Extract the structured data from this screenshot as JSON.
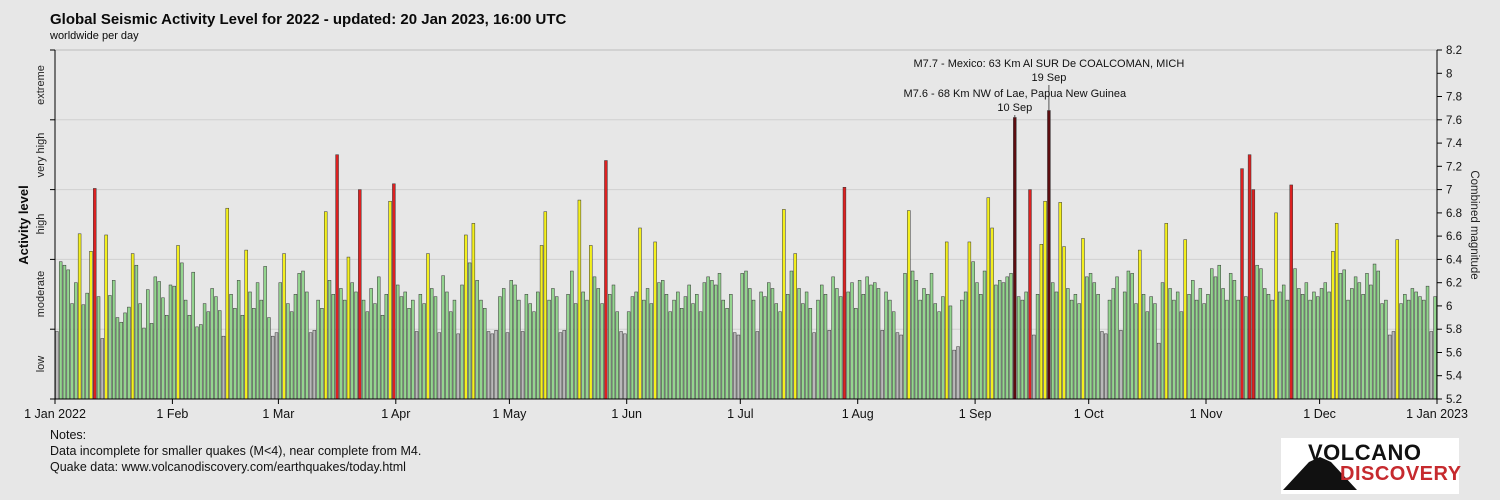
{
  "header": {
    "title": "Global Seismic Activity Level for 2022 - updated: 20 Jan 2023, 16:00 UTC",
    "subtitle": "worldwide per day"
  },
  "chart_data": {
    "type": "bar",
    "title": "Global Seismic Activity Level for 2022 - updated: 20 Jan 2023, 16:00 UTC",
    "subtitle": "worldwide per day",
    "x_axis": {
      "tick_labels": [
        "1 Jan 2022",
        "1 Feb",
        "1 Mar",
        "1 Apr",
        "1 May",
        "1 Jun",
        "1 Jul",
        "1 Aug",
        "1 Sep",
        "1 Oct",
        "1 Nov",
        "1 Dec",
        "1 Jan 2023"
      ],
      "tick_day_offsets": [
        0,
        31,
        59,
        90,
        120,
        151,
        181,
        212,
        243,
        273,
        304,
        334,
        365
      ]
    },
    "y_axis_right": {
      "label": "Combined magnitude",
      "min": 5.2,
      "max": 8.2,
      "tick_step": 0.2
    },
    "y_axis_left": {
      "label": "Activity level",
      "bands": [
        {
          "name": "low",
          "from": 5.2,
          "to": 5.8,
          "color": "#b9b9b9"
        },
        {
          "name": "moderate",
          "from": 5.8,
          "to": 6.4,
          "color": "#94d58f"
        },
        {
          "name": "high",
          "from": 6.4,
          "to": 7.0,
          "color": "#f4f01e"
        },
        {
          "name": "very high",
          "from": 7.0,
          "to": 7.6,
          "color": "#dd2121"
        },
        {
          "name": "extreme",
          "from": 7.6,
          "to": 8.2,
          "color": "#5c0d10"
        }
      ]
    },
    "grid": {
      "boundary_lines": [
        5.8,
        6.4,
        7.0,
        7.6,
        8.2
      ]
    },
    "series": [
      {
        "name": "Combined magnitude per day",
        "start": "1 Jan 2022",
        "values": [
          5.78,
          6.38,
          6.35,
          6.31,
          6.02,
          6.2,
          6.62,
          6.01,
          6.11,
          6.47,
          7.01,
          6.08,
          5.72,
          6.61,
          6.09,
          6.22,
          5.9,
          5.86,
          5.94,
          5.99,
          6.45,
          6.35,
          6.02,
          5.81,
          6.14,
          5.85,
          6.25,
          6.21,
          6.07,
          5.92,
          6.18,
          6.17,
          6.52,
          6.37,
          6.05,
          5.92,
          6.29,
          5.82,
          5.84,
          6.02,
          5.95,
          6.15,
          6.08,
          5.96,
          5.74,
          6.84,
          6.1,
          5.98,
          6.22,
          5.92,
          6.48,
          6.12,
          5.98,
          6.2,
          6.05,
          6.34,
          5.9,
          5.74,
          5.77,
          6.2,
          6.45,
          6.02,
          5.95,
          6.1,
          6.28,
          6.3,
          6.12,
          5.77,
          5.79,
          6.05,
          5.98,
          6.81,
          6.22,
          6.1,
          7.3,
          6.15,
          6.05,
          6.42,
          6.2,
          6.12,
          7.0,
          6.05,
          5.95,
          6.15,
          6.02,
          6.25,
          5.92,
          6.1,
          6.9,
          7.05,
          6.18,
          6.08,
          6.12,
          5.98,
          6.05,
          5.78,
          6.1,
          6.02,
          6.45,
          6.15,
          6.08,
          5.77,
          6.26,
          6.12,
          5.95,
          6.05,
          5.76,
          6.18,
          6.61,
          6.37,
          6.71,
          6.22,
          6.05,
          5.98,
          5.78,
          5.76,
          5.79,
          6.08,
          6.15,
          5.77,
          6.22,
          6.18,
          6.05,
          5.78,
          6.1,
          6.02,
          5.95,
          6.12,
          6.52,
          6.81,
          6.05,
          6.15,
          6.08,
          5.77,
          5.79,
          6.1,
          6.3,
          6.02,
          6.91,
          6.12,
          6.05,
          6.52,
          6.25,
          6.15,
          6.02,
          7.25,
          6.1,
          6.18,
          5.95,
          5.78,
          5.76,
          5.95,
          6.08,
          6.12,
          6.67,
          6.05,
          6.15,
          6.02,
          6.55,
          6.2,
          6.22,
          6.1,
          5.95,
          6.05,
          6.12,
          5.98,
          6.08,
          6.18,
          6.02,
          6.1,
          5.95,
          6.2,
          6.25,
          6.22,
          6.18,
          6.28,
          6.05,
          5.98,
          6.1,
          5.77,
          5.75,
          6.28,
          6.3,
          6.15,
          6.05,
          5.78,
          6.12,
          6.08,
          6.2,
          6.15,
          6.02,
          5.95,
          6.83,
          6.1,
          6.3,
          6.45,
          6.15,
          6.02,
          6.12,
          5.98,
          5.77,
          6.05,
          6.18,
          6.1,
          5.79,
          6.25,
          6.15,
          6.08,
          7.02,
          6.12,
          6.2,
          5.98,
          6.22,
          6.1,
          6.25,
          6.18,
          6.2,
          6.15,
          5.79,
          6.12,
          6.05,
          5.95,
          5.77,
          5.75,
          6.28,
          6.82,
          6.3,
          6.22,
          6.05,
          6.15,
          6.1,
          6.28,
          6.02,
          5.95,
          6.08,
          6.55,
          6.0,
          5.62,
          5.65,
          6.05,
          6.12,
          6.55,
          6.38,
          6.2,
          6.1,
          6.3,
          6.93,
          6.67,
          6.18,
          6.22,
          6.2,
          6.25,
          6.28,
          7.62,
          6.08,
          6.05,
          6.12,
          7.0,
          5.75,
          6.1,
          6.53,
          6.9,
          7.68,
          6.2,
          6.12,
          6.89,
          6.51,
          6.15,
          6.05,
          6.1,
          6.02,
          6.58,
          6.25,
          6.28,
          6.2,
          6.1,
          5.78,
          5.76,
          6.05,
          6.15,
          6.25,
          5.79,
          6.12,
          6.3,
          6.28,
          6.02,
          6.48,
          6.1,
          5.95,
          6.08,
          6.02,
          5.68,
          6.2,
          6.71,
          6.15,
          6.05,
          6.12,
          5.95,
          6.57,
          6.1,
          6.22,
          6.05,
          6.15,
          6.02,
          6.1,
          6.32,
          6.25,
          6.35,
          6.15,
          6.05,
          6.28,
          6.22,
          6.05,
          7.18,
          6.08,
          7.3,
          7.0,
          6.35,
          6.32,
          6.15,
          6.1,
          6.05,
          6.8,
          6.12,
          6.18,
          6.05,
          7.04,
          6.32,
          6.15,
          6.1,
          6.2,
          6.05,
          6.12,
          6.08,
          6.15,
          6.2,
          6.12,
          6.47,
          6.71,
          6.28,
          6.31,
          6.05,
          6.15,
          6.25,
          6.2,
          6.1,
          6.28,
          6.18,
          6.36,
          6.3,
          6.02,
          6.05,
          5.75,
          5.78,
          6.57,
          6.02,
          6.1,
          6.05,
          6.15,
          6.12,
          6.08,
          6.05,
          6.17,
          5.78,
          6.08
        ]
      }
    ],
    "annotations": [
      {
        "text": "M7.7 - Mexico: 63 Km Al SUR De COALCOMAN, MICH",
        "date_label": "19 Sep",
        "day_index": 262,
        "magnitude": 7.7
      },
      {
        "text": "M7.6 - 68 Km NW of Lae, Papua New Guinea",
        "date_label": "10 Sep",
        "day_index": 253,
        "magnitude": 7.6
      }
    ]
  },
  "notes": {
    "heading": "Notes:",
    "line1": "Data incomplete for smaller quakes (M<4), near complete from M4.",
    "line2": "Quake data: www.volcanodiscovery.com/earthquakes/today.html"
  },
  "logo": {
    "line1": "VOLCANO",
    "line2": "DISCOVERY",
    "accent_color": "#c62a2e"
  }
}
